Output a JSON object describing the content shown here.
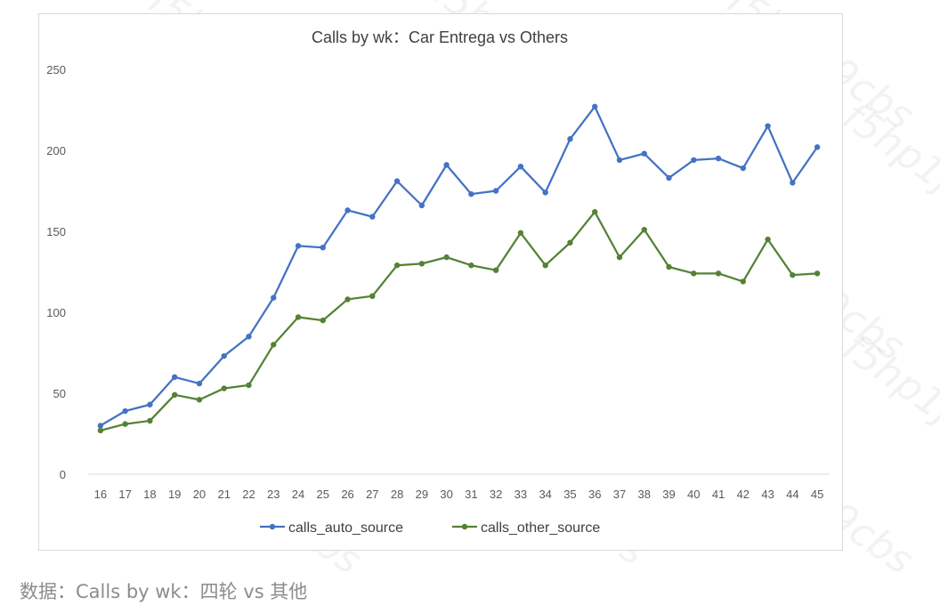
{
  "chart_data": {
    "type": "line",
    "title": "Calls by wk：Car Entrega vs Others",
    "xlabel": "",
    "ylabel": "",
    "ylim": [
      0,
      250
    ],
    "yticks": [
      "0",
      "50",
      "100",
      "150",
      "200",
      "250"
    ],
    "categories": [
      "16",
      "17",
      "18",
      "19",
      "20",
      "21",
      "22",
      "23",
      "24",
      "25",
      "26",
      "27",
      "28",
      "29",
      "30",
      "31",
      "32",
      "33",
      "34",
      "35",
      "36",
      "37",
      "38",
      "39",
      "40",
      "41",
      "42",
      "43",
      "44",
      "45"
    ],
    "series": [
      {
        "name": "calls_auto_source",
        "color": "#4472c4",
        "values": [
          30,
          39,
          43,
          60,
          56,
          73,
          85,
          109,
          141,
          140,
          163,
          159,
          181,
          166,
          191,
          173,
          175,
          190,
          174,
          207,
          227,
          194,
          198,
          183,
          194,
          195,
          189,
          215,
          180,
          202
        ]
      },
      {
        "name": "calls_other_source",
        "color": "#548235",
        "values": [
          27,
          31,
          33,
          49,
          46,
          53,
          55,
          80,
          97,
          95,
          108,
          110,
          129,
          130,
          134,
          129,
          126,
          149,
          129,
          143,
          162,
          134,
          151,
          128,
          124,
          124,
          119,
          145,
          123,
          124
        ]
      }
    ],
    "grid": false,
    "legend_position": "bottom"
  },
  "watermark": "f5hp1j9cbs",
  "caption": "数据：Calls by wk：四轮 vs 其他"
}
